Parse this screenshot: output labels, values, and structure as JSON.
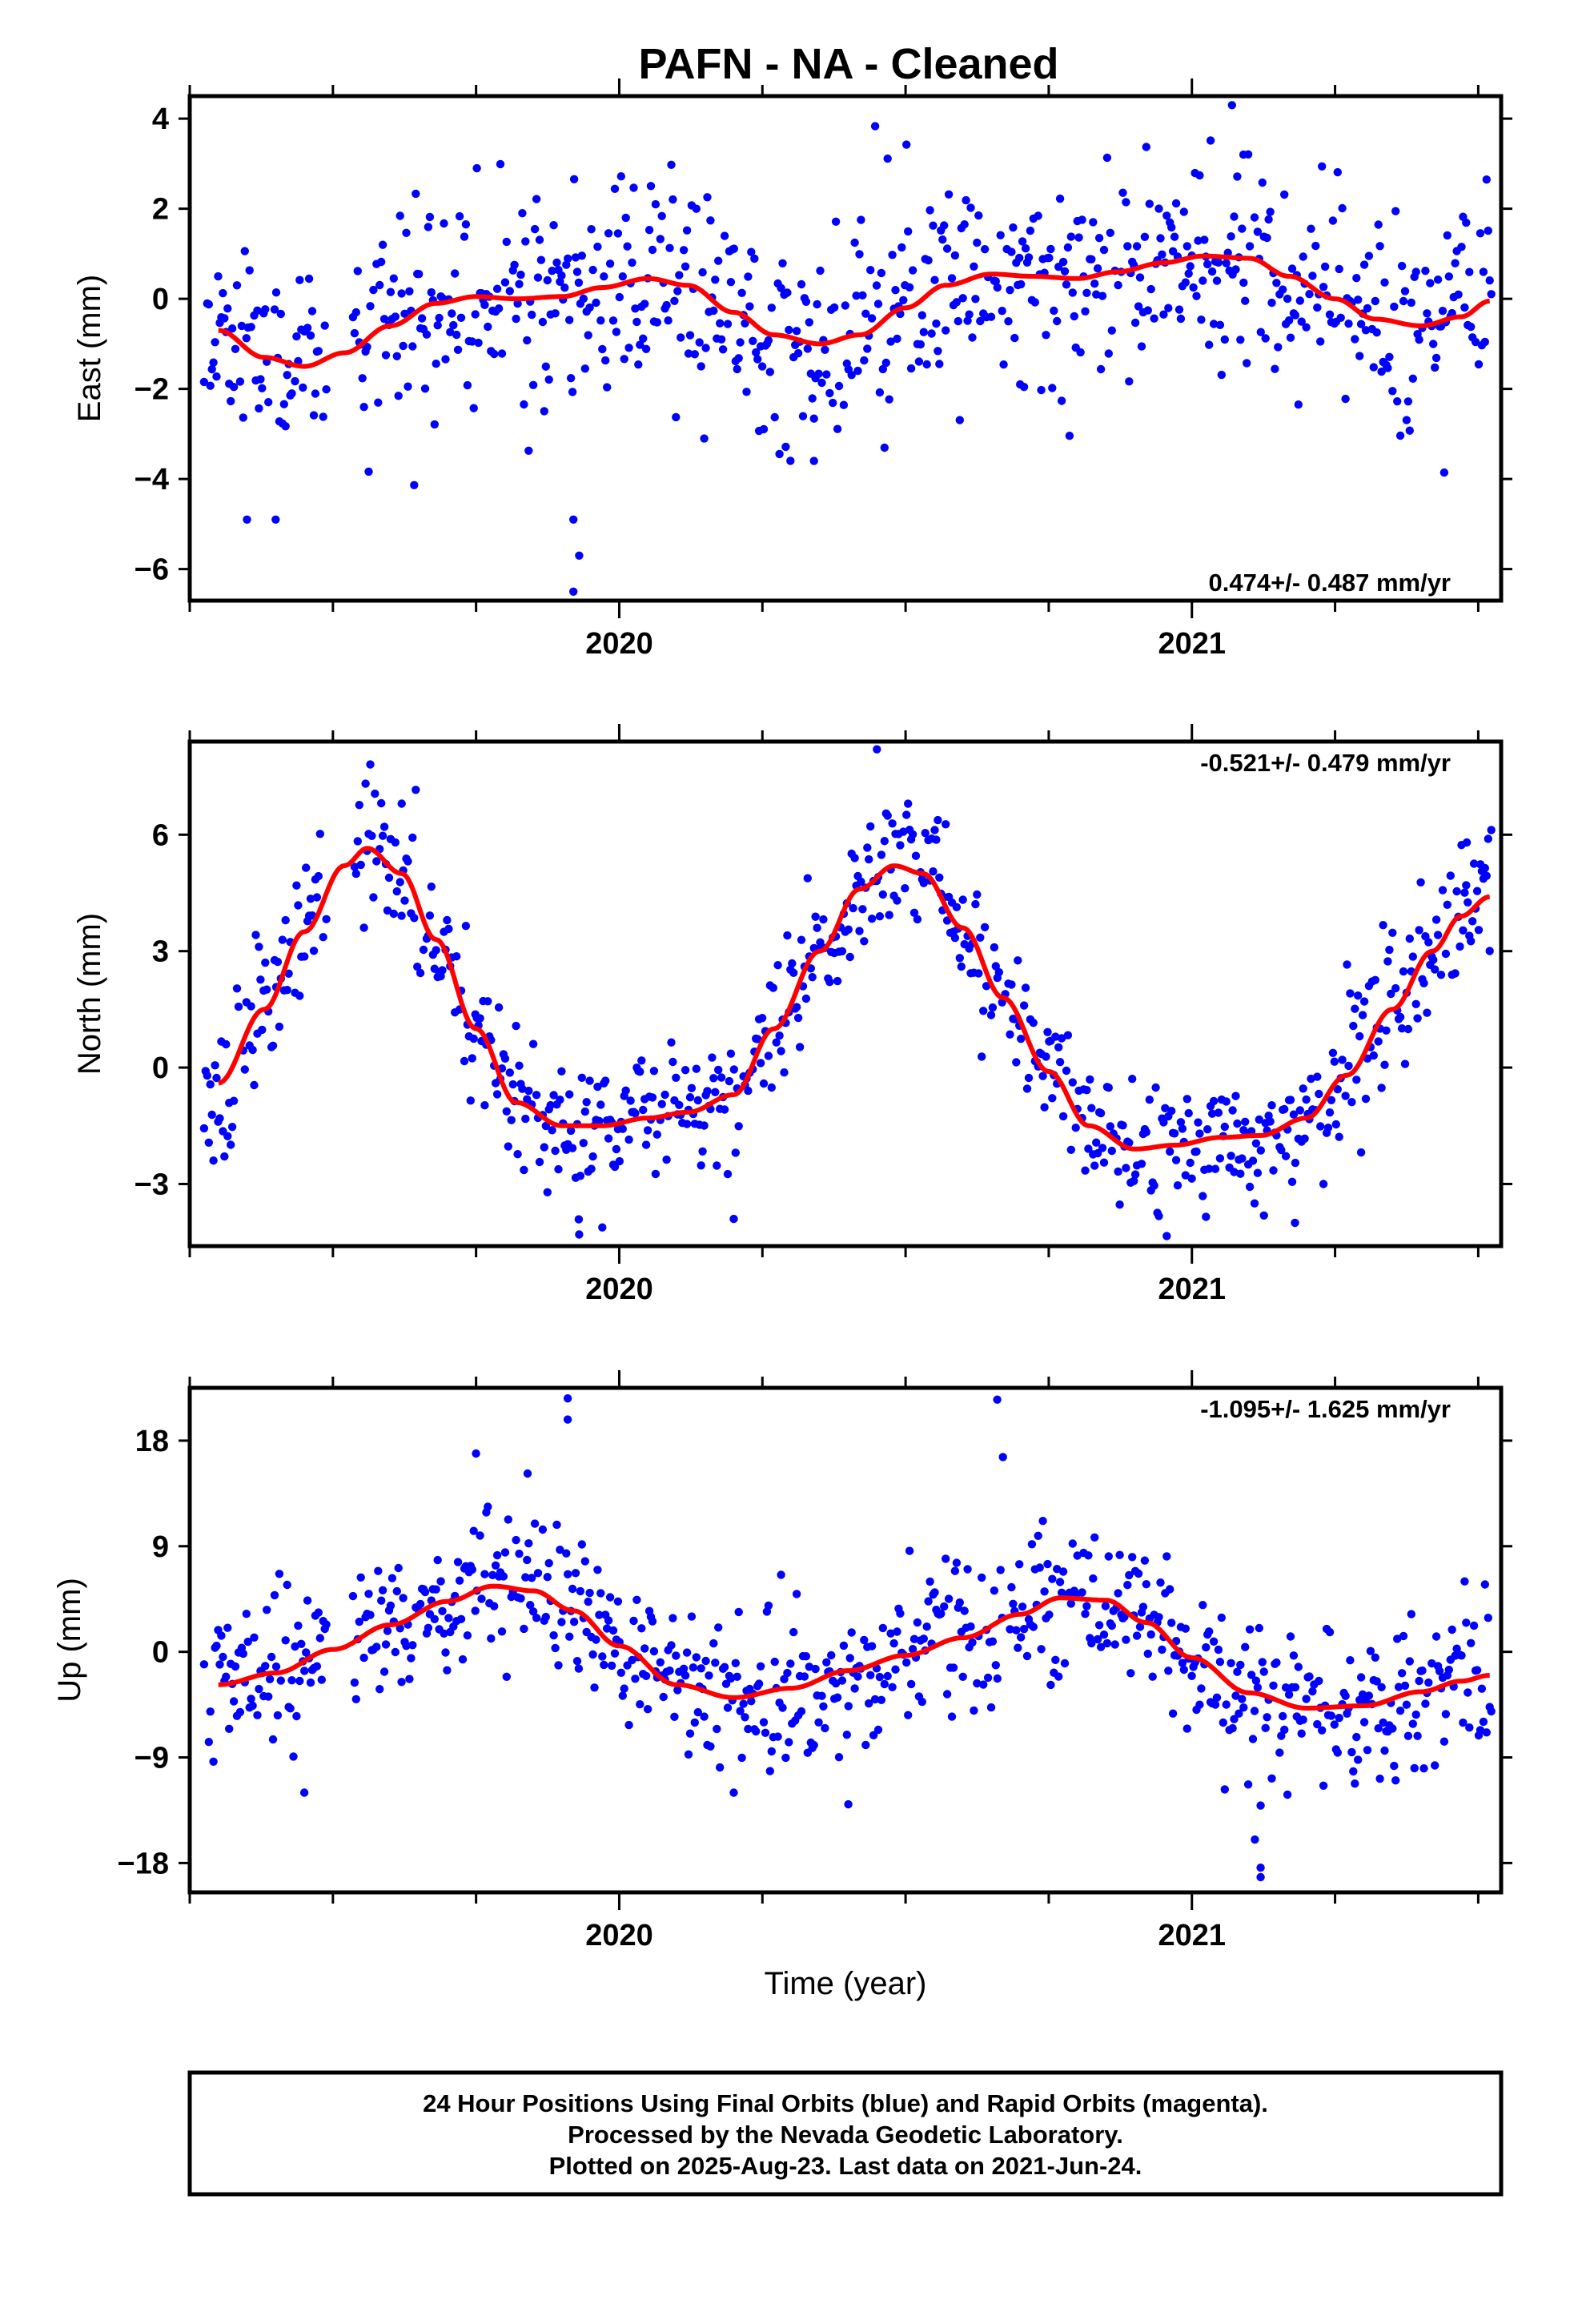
{
  "title": "PAFN  - NA - Cleaned",
  "xlabel": "Time (year)",
  "footer": {
    "line1": "24 Hour Positions Using Final Orbits (blue) and Rapid Orbits (magenta).",
    "line2": "Processed by the Nevada Geodetic Laboratory.",
    "line3": "Plotted on 2025-Aug-23. Last data on 2021-Jun-24."
  },
  "colors": {
    "points": "#0000ff",
    "fit": "#ff0000",
    "axes": "#000000"
  },
  "chart_data": [
    {
      "type": "scatter",
      "ylabel": "East (mm)",
      "rate_label": "0.474+/- 0.487 mm/yr",
      "rate_position": "bottom-right",
      "xlim": [
        2019.25,
        2021.54
      ],
      "ylim": [
        -6.7,
        4.5
      ],
      "yticks": [
        4,
        2,
        0,
        -2,
        -4,
        -6
      ],
      "ytick_labels": [
        "4",
        "2",
        "0",
        "−2",
        "−4",
        "−6"
      ],
      "xticks": [
        2020,
        2021
      ],
      "xtick_labels": [
        "2020",
        "2021"
      ],
      "fit": {
        "x": [
          2019.3,
          2019.38,
          2019.45,
          2019.52,
          2019.6,
          2019.68,
          2019.75,
          2019.82,
          2019.9,
          2019.97,
          2020.05,
          2020.12,
          2020.2,
          2020.27,
          2020.35,
          2020.42,
          2020.5,
          2020.57,
          2020.65,
          2020.72,
          2020.8,
          2020.87,
          2020.95,
          2021.02,
          2021.1,
          2021.17,
          2021.25,
          2021.32,
          2021.4,
          2021.47,
          2021.52
        ],
        "y": [
          -0.7,
          -1.3,
          -1.5,
          -1.2,
          -0.6,
          -0.1,
          0.05,
          0.0,
          0.05,
          0.25,
          0.45,
          0.3,
          -0.3,
          -0.8,
          -1.0,
          -0.8,
          -0.2,
          0.3,
          0.55,
          0.5,
          0.45,
          0.6,
          0.8,
          0.95,
          0.9,
          0.5,
          0.0,
          -0.45,
          -0.6,
          -0.4,
          -0.05
        ]
      },
      "cloud": {
        "spread": 1.2,
        "seed": 11,
        "outliers": [
          [
            2019.92,
            -4.9
          ],
          [
            2019.93,
            -5.7
          ],
          [
            2019.92,
            -6.5
          ],
          [
            2021.07,
            4.3
          ],
          [
            2021.09,
            3.2
          ],
          [
            2020.34,
            -3.6
          ],
          [
            2019.35,
            -4.9
          ],
          [
            2019.4,
            -4.9
          ],
          [
            2020.7,
            -1.9
          ]
        ]
      }
    },
    {
      "type": "scatter",
      "ylabel": "North (mm)",
      "rate_label": "-0.521+/- 0.479 mm/yr",
      "rate_position": "top-right",
      "xlim": [
        2019.25,
        2021.54
      ],
      "ylim": [
        -4.6,
        8.4
      ],
      "yticks": [
        6,
        3,
        0,
        -3
      ],
      "ytick_labels": [
        "6",
        "3",
        "0",
        "−3"
      ],
      "xticks": [
        2020,
        2021
      ],
      "xtick_labels": [
        "2020",
        "2021"
      ],
      "fit": {
        "x": [
          2019.3,
          2019.38,
          2019.45,
          2019.52,
          2019.56,
          2019.62,
          2019.68,
          2019.75,
          2019.82,
          2019.9,
          2019.97,
          2020.05,
          2020.12,
          2020.2,
          2020.27,
          2020.35,
          2020.42,
          2020.48,
          2020.53,
          2020.6,
          2020.67,
          2020.75,
          2020.82,
          2020.9,
          2020.97,
          2021.05,
          2021.12,
          2021.2,
          2021.27,
          2021.35,
          2021.42,
          2021.47,
          2021.52
        ],
        "y": [
          -0.4,
          1.5,
          3.5,
          5.2,
          5.65,
          5.0,
          3.3,
          1.0,
          -0.9,
          -1.5,
          -1.5,
          -1.3,
          -1.15,
          -0.7,
          1.0,
          3.0,
          4.6,
          5.2,
          5.0,
          3.6,
          1.8,
          -0.1,
          -1.5,
          -2.1,
          -2.0,
          -1.8,
          -1.75,
          -1.3,
          -0.2,
          1.5,
          3.0,
          3.9,
          4.4
        ]
      },
      "cloud": {
        "spread": 0.9,
        "seed": 23,
        "outliers": [
          [
            2020.45,
            8.2
          ],
          [
            2019.62,
            6.8
          ],
          [
            2020.2,
            -3.9
          ],
          [
            2019.93,
            -4.3
          ],
          [
            2021.18,
            -4.0
          ],
          [
            2021.48,
            5.8
          ]
        ]
      }
    },
    {
      "type": "scatter",
      "ylabel": "Up (mm)",
      "rate_label": "-1.095+/- 1.625 mm/yr",
      "rate_position": "top-right",
      "xlim": [
        2019.25,
        2021.54
      ],
      "ylim": [
        -20.5,
        22.5
      ],
      "yticks": [
        18,
        9,
        0,
        -9,
        -18
      ],
      "ytick_labels": [
        "18",
        "9",
        "0",
        "−9",
        "−18"
      ],
      "xticks": [
        2020,
        2021
      ],
      "xtick_labels": [
        "2020",
        "2021"
      ],
      "fit": {
        "x": [
          2019.3,
          2019.4,
          2019.5,
          2019.6,
          2019.7,
          2019.78,
          2019.85,
          2019.92,
          2020.0,
          2020.1,
          2020.2,
          2020.3,
          2020.4,
          2020.5,
          2020.6,
          2020.7,
          2020.77,
          2020.85,
          2020.92,
          2021.0,
          2021.1,
          2021.2,
          2021.3,
          2021.4,
          2021.47,
          2021.52
        ],
        "y": [
          -2.8,
          -1.8,
          0.2,
          2.3,
          4.3,
          5.6,
          5.2,
          3.5,
          0.5,
          -2.8,
          -3.9,
          -3.1,
          -1.6,
          -0.3,
          1.2,
          3.2,
          4.6,
          4.4,
          2.5,
          -0.5,
          -3.5,
          -4.8,
          -4.6,
          -3.4,
          -2.5,
          -2.0
        ]
      },
      "cloud": {
        "spread": 3.2,
        "seed": 37,
        "outliers": [
          [
            2019.91,
            21.6
          ],
          [
            2019.91,
            19.8
          ],
          [
            2020.66,
            21.5
          ],
          [
            2020.67,
            16.6
          ],
          [
            2021.12,
            -13.1
          ],
          [
            2021.11,
            -16.0
          ],
          [
            2021.12,
            -18.4
          ],
          [
            2021.12,
            -19.2
          ],
          [
            2019.45,
            -12.0
          ],
          [
            2020.4,
            -13.0
          ],
          [
            2020.2,
            -12.0
          ],
          [
            2019.75,
            16.9
          ],
          [
            2019.84,
            15.2
          ]
        ]
      }
    }
  ]
}
